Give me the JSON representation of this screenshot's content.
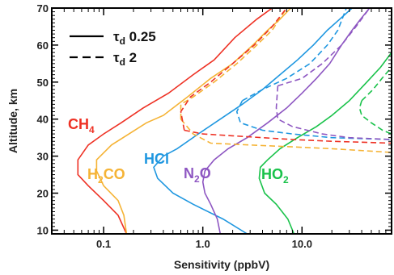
{
  "chart_data": {
    "type": "line",
    "title": "",
    "xlabel": "Sensitivity (ppbV)",
    "ylabel": "Altitude, km",
    "xscale": "log",
    "xlim": [
      0.03,
      80
    ],
    "ylim": [
      9,
      70
    ],
    "x_ticks": [
      {
        "value": 0.1,
        "label": "0.1"
      },
      {
        "value": 1,
        "label": "1.0"
      },
      {
        "value": 10,
        "label": "10.0"
      }
    ],
    "y_ticks": [
      {
        "value": 10,
        "label": "10"
      },
      {
        "value": 20,
        "label": "20"
      },
      {
        "value": 30,
        "label": "30"
      },
      {
        "value": 40,
        "label": "40"
      },
      {
        "value": 50,
        "label": "50"
      },
      {
        "value": 60,
        "label": "60"
      },
      {
        "value": 70,
        "label": "70"
      }
    ],
    "legend": {
      "placement": "top-left",
      "entries": [
        {
          "style": "solid",
          "base": "τ",
          "sub": "d",
          "value": "0.25"
        },
        {
          "style": "dashed",
          "base": "τ",
          "sub": "d",
          "value": "2"
        }
      ]
    },
    "species_labels": [
      {
        "id": "ch4",
        "base": "CH",
        "sub": "4",
        "tail": "",
        "color": "#ee3124"
      },
      {
        "id": "h2co",
        "base": "H",
        "sub": "2",
        "tail": "CO",
        "color": "#f5b335"
      },
      {
        "id": "hcl",
        "base": "HCl",
        "sub": "",
        "tail": "",
        "color": "#1f97e0"
      },
      {
        "id": "n2o",
        "base": "N",
        "sub": "2",
        "tail": "O",
        "color": "#8e57c2"
      },
      {
        "id": "ho2",
        "base": "HO",
        "sub": "2",
        "tail": "",
        "color": "#19c24a"
      }
    ],
    "series": [
      {
        "species": "ch4",
        "style": "solid",
        "color": "#ee3124",
        "points": [
          [
            0.17,
            9
          ],
          [
            0.14,
            14
          ],
          [
            0.1,
            18
          ],
          [
            0.07,
            22
          ],
          [
            0.055,
            25
          ],
          [
            0.055,
            29
          ],
          [
            0.07,
            33
          ],
          [
            0.1,
            36
          ],
          [
            0.15,
            39
          ],
          [
            0.25,
            43
          ],
          [
            0.45,
            47
          ],
          [
            0.8,
            52
          ],
          [
            1.3,
            56
          ],
          [
            2.1,
            62
          ],
          [
            3.5,
            67
          ],
          [
            5,
            70
          ]
        ]
      },
      {
        "species": "h2co",
        "style": "solid",
        "color": "#f5b335",
        "points": [
          [
            0.17,
            9
          ],
          [
            0.16,
            14
          ],
          [
            0.14,
            18
          ],
          [
            0.1,
            22
          ],
          [
            0.085,
            26
          ],
          [
            0.085,
            29
          ],
          [
            0.12,
            33
          ],
          [
            0.18,
            36
          ],
          [
            0.27,
            39
          ],
          [
            0.4,
            41
          ],
          [
            0.7,
            46
          ],
          [
            1.2,
            51
          ],
          [
            2,
            55
          ],
          [
            3.2,
            60
          ],
          [
            4.5,
            64
          ],
          [
            6,
            67
          ],
          [
            7.7,
            70
          ]
        ]
      },
      {
        "species": "hcl",
        "style": "solid",
        "color": "#1f97e0",
        "points": [
          [
            2.8,
            9
          ],
          [
            1.6,
            13
          ],
          [
            0.8,
            17
          ],
          [
            0.5,
            20
          ],
          [
            0.35,
            24
          ],
          [
            0.32,
            27
          ],
          [
            0.4,
            30
          ],
          [
            0.55,
            32
          ],
          [
            0.9,
            36
          ],
          [
            1.5,
            40
          ],
          [
            2.5,
            44
          ],
          [
            4,
            48
          ],
          [
            6,
            52
          ],
          [
            9,
            56
          ],
          [
            13,
            60
          ],
          [
            18,
            64
          ],
          [
            24,
            67
          ],
          [
            32,
            70
          ]
        ]
      },
      {
        "species": "n2o",
        "style": "solid",
        "color": "#8e57c2",
        "points": [
          [
            1.5,
            9
          ],
          [
            1.4,
            13
          ],
          [
            1.2,
            17
          ],
          [
            1.05,
            20
          ],
          [
            1.0,
            23
          ],
          [
            1.05,
            26
          ],
          [
            1.3,
            29
          ],
          [
            1.8,
            32
          ],
          [
            2.8,
            35
          ],
          [
            4.5,
            39
          ],
          [
            7,
            43
          ],
          [
            10,
            47
          ],
          [
            14,
            51
          ],
          [
            19,
            55
          ],
          [
            25,
            60
          ],
          [
            32,
            64
          ],
          [
            39,
            67
          ],
          [
            48,
            70
          ]
        ]
      },
      {
        "species": "ho2",
        "style": "solid",
        "color": "#19c24a",
        "points": [
          [
            8.3,
            9
          ],
          [
            7.2,
            13
          ],
          [
            5.5,
            17
          ],
          [
            4.2,
            20
          ],
          [
            3.7,
            24
          ],
          [
            3.8,
            27
          ],
          [
            4.5,
            29
          ],
          [
            6,
            32
          ],
          [
            9,
            35
          ],
          [
            14,
            38
          ],
          [
            20,
            41
          ],
          [
            30,
            45
          ],
          [
            45,
            50
          ],
          [
            62,
            54
          ],
          [
            80,
            58
          ]
        ]
      },
      {
        "species": "ch4",
        "style": "dashed",
        "color": "#ee3124",
        "points": [
          [
            0.65,
            37
          ],
          [
            1.0,
            36
          ],
          [
            2,
            35.5
          ],
          [
            4,
            35
          ],
          [
            8,
            34.5
          ],
          [
            20,
            34
          ],
          [
            80,
            33.5
          ]
        ]
      },
      {
        "species": "h2co",
        "style": "dashed",
        "color": "#f5b335",
        "points": [
          [
            0.6,
            40
          ],
          [
            0.8,
            36
          ],
          [
            1.2,
            33.5
          ],
          [
            3,
            33
          ],
          [
            8,
            32.5
          ],
          [
            20,
            32
          ],
          [
            80,
            31
          ]
        ]
      },
      {
        "species": "h2co",
        "style": "dashed",
        "color": "#f5b335",
        "points": [
          [
            0.6,
            40
          ],
          [
            0.6,
            44
          ],
          [
            0.8,
            46
          ],
          [
            1.3,
            50
          ],
          [
            2.2,
            55
          ],
          [
            3.5,
            60
          ],
          [
            5,
            64
          ],
          [
            7,
            70
          ]
        ]
      },
      {
        "species": "ch4",
        "style": "dashed",
        "color": "#ee3124",
        "points": [
          [
            0.65,
            37
          ],
          [
            0.6,
            42
          ],
          [
            0.75,
            46
          ],
          [
            1.2,
            50
          ],
          [
            2,
            55
          ],
          [
            3.3,
            60
          ],
          [
            5,
            65
          ],
          [
            7,
            70
          ]
        ]
      },
      {
        "species": "hcl",
        "style": "dashed",
        "color": "#1f97e0",
        "points": [
          [
            2.5,
            45
          ],
          [
            2.2,
            42
          ],
          [
            2.4,
            39
          ],
          [
            4,
            37
          ],
          [
            8,
            36
          ],
          [
            20,
            35
          ],
          [
            80,
            34.5
          ]
        ]
      },
      {
        "species": "hcl",
        "style": "dashed",
        "color": "#1f97e0",
        "points": [
          [
            2.5,
            45
          ],
          [
            4,
            48
          ],
          [
            7,
            51
          ],
          [
            12,
            55
          ],
          [
            18,
            60
          ],
          [
            23,
            64
          ],
          [
            28,
            70
          ]
        ]
      },
      {
        "species": "n2o",
        "style": "dashed",
        "color": "#8e57c2",
        "points": [
          [
            5.7,
            49
          ],
          [
            5.6,
            46
          ],
          [
            5.5,
            43
          ],
          [
            5.7,
            40
          ],
          [
            8,
            38
          ],
          [
            16,
            36
          ],
          [
            30,
            35
          ],
          [
            80,
            34.5
          ]
        ]
      },
      {
        "species": "n2o",
        "style": "dashed",
        "color": "#8e57c2",
        "points": [
          [
            5.7,
            49
          ],
          [
            10,
            51
          ],
          [
            16,
            55
          ],
          [
            25,
            60
          ],
          [
            35,
            65
          ],
          [
            48,
            70
          ]
        ]
      },
      {
        "species": "ho2",
        "style": "dashed",
        "color": "#19c24a",
        "points": [
          [
            40,
            45
          ],
          [
            38,
            43
          ],
          [
            40,
            41
          ],
          [
            50,
            39
          ],
          [
            65,
            37
          ],
          [
            80,
            36
          ]
        ]
      },
      {
        "species": "ho2",
        "style": "dashed",
        "color": "#19c24a",
        "points": [
          [
            40,
            45
          ],
          [
            52,
            48
          ],
          [
            64,
            51
          ],
          [
            80,
            54
          ]
        ]
      }
    ]
  }
}
